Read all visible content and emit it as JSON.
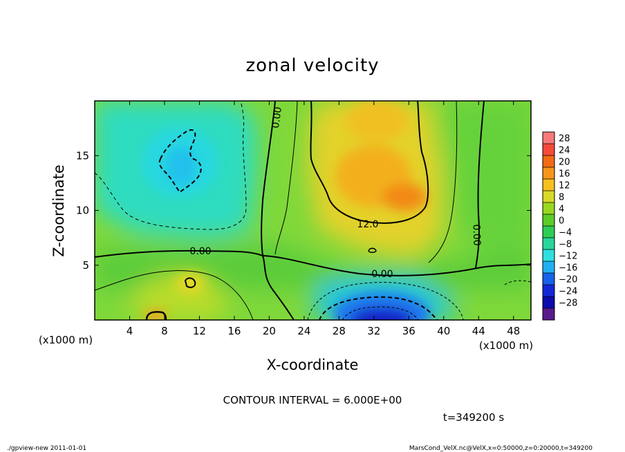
{
  "chart_data": {
    "type": "heatmap",
    "title": "zonal velocity",
    "xlabel": "X-coordinate",
    "ylabel": "Z-coordinate",
    "x_unit_note": "(x1000 m)",
    "x_unit_note_right": "(x1000 m)",
    "y_unit_note": "(x1000 m)",
    "xlim": [
      0,
      50
    ],
    "ylim": [
      0,
      20
    ],
    "x_ticks": [
      4,
      8,
      12,
      16,
      20,
      24,
      28,
      32,
      36,
      40,
      44,
      48
    ],
    "y_ticks": [
      5,
      10,
      15
    ],
    "colorbar_levels": [
      28,
      24,
      20,
      16,
      12,
      8,
      4,
      0,
      -4,
      -8,
      -12,
      -16,
      -20,
      -24,
      -28
    ],
    "colorbar_colors": [
      "#f77a7a",
      "#f44a3a",
      "#f26a14",
      "#f5961a",
      "#f7c01e",
      "#d8d829",
      "#9ad81f",
      "#5ccc28",
      "#2ecc55",
      "#28d69a",
      "#2ee0e0",
      "#22b0f0",
      "#1862ea",
      "#1428d8",
      "#0c0aaa",
      "#581a8a"
    ],
    "contour_interval_text": "CONTOUR INTERVAL = 6.000E+00",
    "contour_labels": [
      "0.00",
      "0.00",
      "0.00",
      "12.0",
      "0.00"
    ],
    "time_text": "t=349200 s",
    "footer_left": "./gpview-new   2011-01-01",
    "footer_right": "MarsCond_VelX.nc@VelX,x=0:50000,z=0:20000,t=349200",
    "field_features": [
      {
        "x": 12,
        "z": 14.5,
        "value": -12,
        "radius_x": 9,
        "radius_z": 6
      },
      {
        "x": 33,
        "z": 12,
        "value": 14,
        "radius_x": 5,
        "radius_z": 5
      },
      {
        "x": 35,
        "z": 11,
        "value": 16,
        "radius_x": 3,
        "radius_z": 2.5
      },
      {
        "x": 33,
        "z": 17.5,
        "value": 12,
        "radius_x": 4,
        "radius_z": 3
      },
      {
        "x": 32.5,
        "z": 0.5,
        "value": -26,
        "radius_x": 4.5,
        "radius_z": 2.2
      },
      {
        "x": 32,
        "z": 1.5,
        "value": -14,
        "radius_x": 7,
        "radius_z": 3
      },
      {
        "x": 7.5,
        "z": 0.6,
        "value": 12,
        "radius_x": 2,
        "radius_z": 1.2
      },
      {
        "x": 11,
        "z": 3,
        "value": 9,
        "radius_x": 2.5,
        "radius_z": 2
      },
      {
        "x": 48,
        "z": 10,
        "value": -2,
        "radius_x": 2,
        "radius_z": 6
      }
    ]
  }
}
